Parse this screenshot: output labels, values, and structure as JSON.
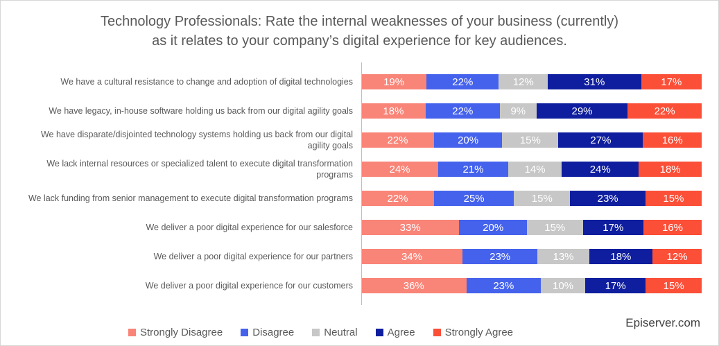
{
  "title": "Technology Professionals: Rate the internal weaknesses of your business (currently)\nas it relates to your company’s digital experience for key audiences.",
  "footer": {
    "brand": "Episerver.com"
  },
  "colors": {
    "strongly_disagree": "#f98478",
    "disagree": "#4562ec",
    "neutral": "#c7c7c7",
    "agree": "#0e1e9e",
    "strongly_agree": "#fb4f38",
    "axis_line": "#bfbfbf",
    "text_gray": "#595959",
    "value_label": "#ffffff"
  },
  "chart_data": {
    "type": "bar",
    "variant": "stacked-100",
    "orientation": "horizontal",
    "unit": "%",
    "title": "Technology Professionals: Rate the internal weaknesses of your business (currently) as it relates to your company’s digital experience for key audiences.",
    "xlabel": "",
    "ylabel": "",
    "grid": false,
    "legend_position": "bottom",
    "value_labels": "inside-white",
    "categories": [
      "We have a cultural resistance to change and adoption of digital technologies",
      "We have legacy, in-house software holding us back from our digital agility goals",
      "We have disparate/disjointed technology systems holding us back from our digital agility goals",
      "We lack internal resources or specialized talent to execute digital transformation programs",
      "We lack funding from senior management to execute digital transformation programs",
      "We deliver a poor digital experience for our salesforce",
      "We deliver a poor digital experience for our partners",
      "We deliver a poor digital experience for our customers"
    ],
    "series": [
      {
        "name": "Strongly Disagree",
        "color": "#f98478",
        "values": [
          19,
          18,
          22,
          24,
          22,
          33,
          34,
          36
        ]
      },
      {
        "name": "Disagree",
        "color": "#4562ec",
        "values": [
          22,
          22,
          20,
          21,
          25,
          20,
          23,
          23
        ]
      },
      {
        "name": "Neutral",
        "color": "#c7c7c7",
        "values": [
          12,
          9,
          15,
          14,
          15,
          15,
          13,
          10
        ]
      },
      {
        "name": "Agree",
        "color": "#0e1e9e",
        "values": [
          31,
          29,
          27,
          24,
          23,
          17,
          18,
          17
        ]
      },
      {
        "name": "Strongly Agree",
        "color": "#fb4f38",
        "values": [
          17,
          22,
          16,
          18,
          15,
          16,
          12,
          15
        ]
      }
    ]
  }
}
